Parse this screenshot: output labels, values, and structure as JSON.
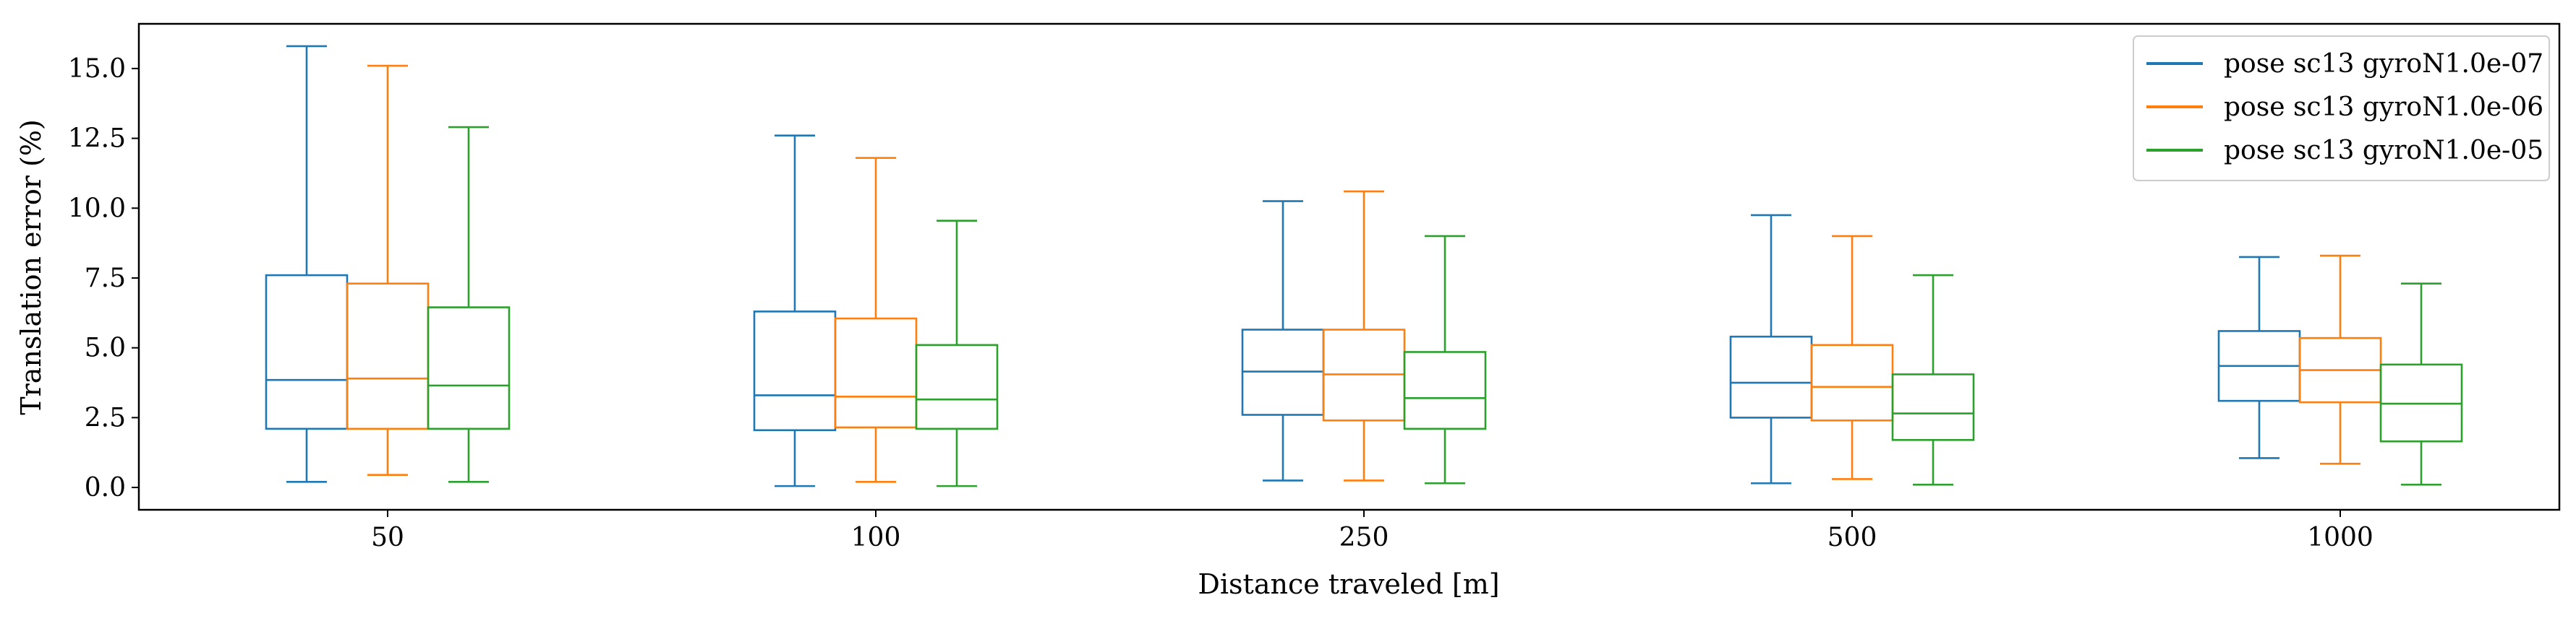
{
  "chart_data": {
    "type": "box",
    "xlabel": "Distance traveled [m]",
    "ylabel": "Translation error (%)",
    "categories": [
      "50",
      "100",
      "250",
      "500",
      "1000"
    ],
    "ylim": [
      -0.8,
      16.6
    ],
    "yticks": [
      0.0,
      2.5,
      5.0,
      7.5,
      10.0,
      12.5,
      15.0
    ],
    "ytick_labels": [
      "0.0",
      "2.5",
      "5.0",
      "7.5",
      "10.0",
      "12.5",
      "15.0"
    ],
    "grid": false,
    "legend_position": "top-right",
    "series": [
      {
        "name": "pose sc13 gyroN1.0e-07",
        "color": "#1f77b4",
        "boxes": [
          {
            "whisker_low": 0.2,
            "q1": 2.1,
            "median": 3.85,
            "q3": 7.6,
            "whisker_high": 15.8
          },
          {
            "whisker_low": 0.05,
            "q1": 2.05,
            "median": 3.3,
            "q3": 6.3,
            "whisker_high": 12.6
          },
          {
            "whisker_low": 0.25,
            "q1": 2.6,
            "median": 4.15,
            "q3": 5.65,
            "whisker_high": 10.25
          },
          {
            "whisker_low": 0.15,
            "q1": 2.5,
            "median": 3.75,
            "q3": 5.4,
            "whisker_high": 9.75
          },
          {
            "whisker_low": 1.05,
            "q1": 3.1,
            "median": 4.35,
            "q3": 5.6,
            "whisker_high": 8.25
          }
        ]
      },
      {
        "name": "pose sc13 gyroN1.0e-06",
        "color": "#ff7f0e",
        "boxes": [
          {
            "whisker_low": 0.45,
            "q1": 2.1,
            "median": 3.9,
            "q3": 7.3,
            "whisker_high": 15.1
          },
          {
            "whisker_low": 0.2,
            "q1": 2.15,
            "median": 3.25,
            "q3": 6.05,
            "whisker_high": 11.8
          },
          {
            "whisker_low": 0.25,
            "q1": 2.4,
            "median": 4.05,
            "q3": 5.65,
            "whisker_high": 10.6
          },
          {
            "whisker_low": 0.3,
            "q1": 2.4,
            "median": 3.6,
            "q3": 5.1,
            "whisker_high": 9.0
          },
          {
            "whisker_low": 0.85,
            "q1": 3.05,
            "median": 4.2,
            "q3": 5.35,
            "whisker_high": 8.3
          }
        ]
      },
      {
        "name": "pose sc13 gyroN1.0e-05",
        "color": "#2ca02c",
        "boxes": [
          {
            "whisker_low": 0.2,
            "q1": 2.1,
            "median": 3.65,
            "q3": 6.45,
            "whisker_high": 12.9
          },
          {
            "whisker_low": 0.05,
            "q1": 2.1,
            "median": 3.15,
            "q3": 5.1,
            "whisker_high": 9.55
          },
          {
            "whisker_low": 0.15,
            "q1": 2.1,
            "median": 3.2,
            "q3": 4.85,
            "whisker_high": 9.0
          },
          {
            "whisker_low": 0.1,
            "q1": 1.7,
            "median": 2.65,
            "q3": 4.05,
            "whisker_high": 7.6
          },
          {
            "whisker_low": 0.1,
            "q1": 1.65,
            "median": 3.0,
            "q3": 4.4,
            "whisker_high": 7.3
          }
        ]
      }
    ]
  }
}
